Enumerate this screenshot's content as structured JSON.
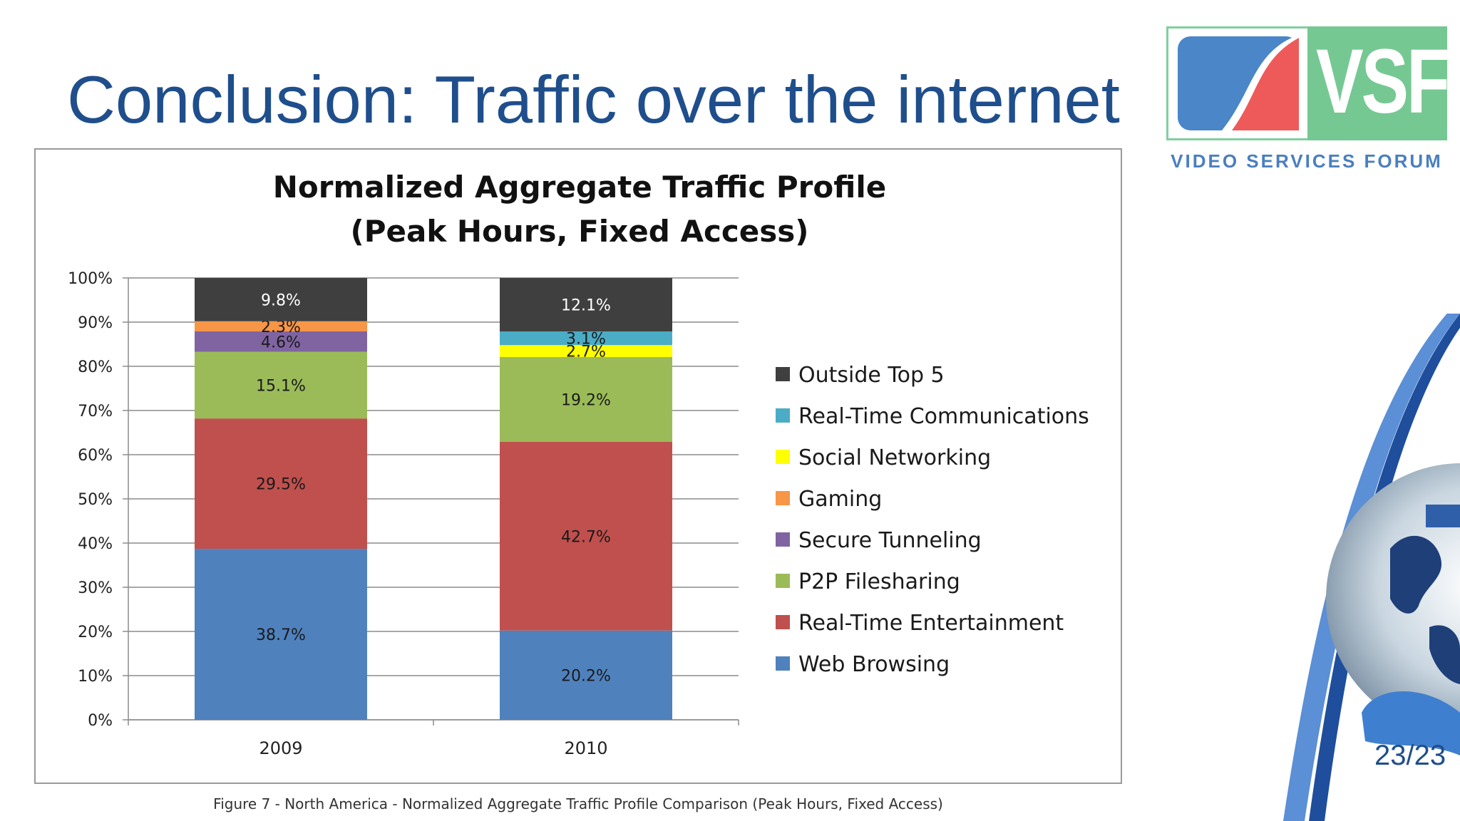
{
  "slide": {
    "title": "Conclusion:  Traffic over the internet",
    "page_number": "23/23"
  },
  "logo": {
    "letters": "VSF",
    "tagline": "VIDEO SERVICES FORUM"
  },
  "caption": "Figure 7 - North America - Normalized Aggregate Traffic Profile Comparison (Peak Hours, Fixed Access)",
  "chart_data": {
    "type": "bar",
    "stacked": true,
    "title": "Normalized Aggregate Traffic Profile",
    "subtitle": "(Peak Hours, Fixed Access)",
    "xlabel": "",
    "ylabel": "",
    "ylim": [
      0,
      100
    ],
    "y_ticks": [
      "0%",
      "10%",
      "20%",
      "30%",
      "40%",
      "50%",
      "60%",
      "70%",
      "80%",
      "90%",
      "100%"
    ],
    "grid": true,
    "legend_position": "right",
    "categories": [
      "2009",
      "2010"
    ],
    "series": [
      {
        "name": "Web Browsing",
        "color": "#4f81bd",
        "values": [
          38.7,
          20.2
        ],
        "labels": [
          "38.7%",
          "20.2%"
        ]
      },
      {
        "name": "Real-Time Entertainment",
        "color": "#c0504d",
        "values": [
          29.5,
          42.7
        ],
        "labels": [
          "29.5%",
          "42.7%"
        ]
      },
      {
        "name": "P2P Filesharing",
        "color": "#9bbb59",
        "values": [
          15.1,
          19.2
        ],
        "labels": [
          "15.1%",
          "19.2%"
        ]
      },
      {
        "name": "Secure Tunneling",
        "color": "#8064a2",
        "values": [
          4.6,
          0
        ],
        "labels": [
          "4.6%",
          ""
        ]
      },
      {
        "name": "Gaming",
        "color": "#f79646",
        "values": [
          2.3,
          0
        ],
        "labels": [
          "2.3%",
          ""
        ]
      },
      {
        "name": "Social Networking",
        "color": "#ffff00",
        "values": [
          0,
          2.7
        ],
        "labels": [
          "",
          "2.7%"
        ]
      },
      {
        "name": "Real-Time Communications",
        "color": "#4bacc6",
        "values": [
          0,
          3.1
        ],
        "labels": [
          "",
          "3.1%"
        ]
      },
      {
        "name": "Outside Top 5",
        "color": "#3f3f3f",
        "values": [
          9.8,
          12.1
        ],
        "labels": [
          "9.8%",
          "12.1%"
        ]
      }
    ],
    "legend_order": [
      "Outside Top 5",
      "Real-Time Communications",
      "Social Networking",
      "Gaming",
      "Secure Tunneling",
      "P2P Filesharing",
      "Real-Time Entertainment",
      "Web Browsing"
    ]
  }
}
